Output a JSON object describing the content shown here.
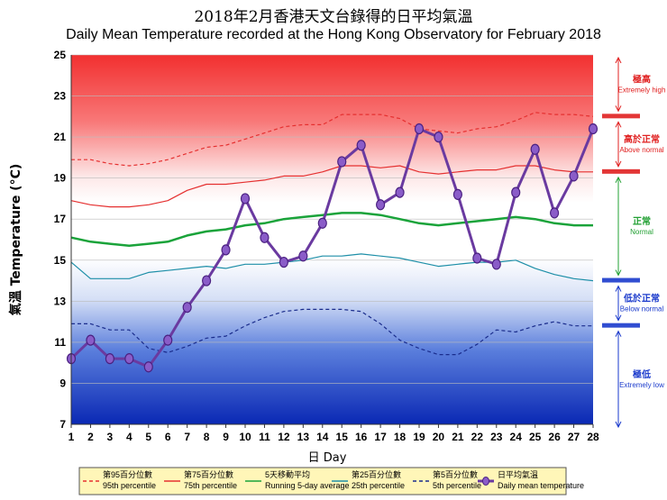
{
  "chart_data": {
    "type": "line",
    "title_zh": "2018年2月香港天文台錄得的日平均氣溫",
    "title": "Daily Mean Temperature recorded at the Hong Kong Observatory for February 2018",
    "xlabel": "日 Day",
    "ylabel": "氣溫  Temperature (°C)",
    "ylim": [
      7,
      25
    ],
    "yticks": [
      "7",
      "9",
      "11",
      "13",
      "15",
      "17",
      "19",
      "21",
      "23",
      "25"
    ],
    "x": [
      1,
      2,
      3,
      4,
      5,
      6,
      7,
      8,
      9,
      10,
      11,
      12,
      13,
      14,
      15,
      16,
      17,
      18,
      19,
      20,
      21,
      22,
      23,
      24,
      25,
      26,
      27,
      28
    ],
    "series": [
      {
        "name": "第95百分位數 95th percentile",
        "color": "#e53030",
        "dash": "4,3",
        "values": [
          19.9,
          19.9,
          19.7,
          19.6,
          19.7,
          19.9,
          20.2,
          20.5,
          20.6,
          20.9,
          21.2,
          21.5,
          21.6,
          21.6,
          22.1,
          22.1,
          22.1,
          21.9,
          21.4,
          21.3,
          21.2,
          21.4,
          21.5,
          21.8,
          22.2,
          22.1,
          22.1,
          22.0
        ]
      },
      {
        "name": "第75百分位數 75th percentile",
        "color": "#e53030",
        "dash": "",
        "values": [
          17.9,
          17.7,
          17.6,
          17.6,
          17.7,
          17.9,
          18.4,
          18.7,
          18.7,
          18.8,
          18.9,
          19.1,
          19.1,
          19.3,
          19.6,
          19.6,
          19.5,
          19.6,
          19.3,
          19.2,
          19.3,
          19.4,
          19.4,
          19.6,
          19.6,
          19.4,
          19.3,
          19.3
        ]
      },
      {
        "name": "5天移動平均 Running 5-day average",
        "color": "#1aa33a",
        "dash": "",
        "values": [
          16.1,
          15.9,
          15.8,
          15.7,
          15.8,
          15.9,
          16.2,
          16.4,
          16.5,
          16.7,
          16.8,
          17.0,
          17.1,
          17.2,
          17.3,
          17.3,
          17.2,
          17.0,
          16.8,
          16.7,
          16.8,
          16.9,
          17.0,
          17.1,
          17.0,
          16.8,
          16.7,
          16.7
        ]
      },
      {
        "name": "第25百分位數 25th percentile",
        "color": "#1e8fa8",
        "dash": "",
        "values": [
          14.9,
          14.1,
          14.1,
          14.1,
          14.4,
          14.5,
          14.6,
          14.7,
          14.6,
          14.8,
          14.8,
          14.9,
          15.0,
          15.2,
          15.2,
          15.3,
          15.2,
          15.1,
          14.9,
          14.7,
          14.8,
          14.9,
          14.9,
          15.0,
          14.6,
          14.3,
          14.1,
          14.0
        ]
      },
      {
        "name": "第5百分位數 5th percentile",
        "color": "#1a2c8c",
        "dash": "4,3",
        "values": [
          11.9,
          11.9,
          11.6,
          11.6,
          10.7,
          10.5,
          10.8,
          11.2,
          11.3,
          11.8,
          12.2,
          12.5,
          12.6,
          12.6,
          12.6,
          12.5,
          11.9,
          11.1,
          10.7,
          10.4,
          10.4,
          10.9,
          11.6,
          11.5,
          11.8,
          12.0,
          11.8,
          11.8
        ]
      },
      {
        "name": "日平均氣溫 Daily mean temperature",
        "color": "#6a3aa0",
        "dash": "",
        "markers": true,
        "values": [
          10.2,
          11.1,
          10.2,
          10.2,
          9.8,
          11.1,
          12.7,
          14.0,
          15.5,
          18.0,
          16.1,
          14.9,
          15.2,
          16.8,
          19.8,
          20.6,
          17.7,
          18.3,
          21.4,
          21.0,
          18.2,
          15.1,
          14.8,
          18.3,
          20.4,
          17.3,
          19.1,
          21.4
        ]
      }
    ],
    "bands": [
      {
        "zh": "極高",
        "en": "Extremely high",
        "color": "#e02020"
      },
      {
        "zh": "高於正常",
        "en": "Above normal",
        "color": "#e02020"
      },
      {
        "zh": "正常",
        "en": "Normal",
        "color": "#22a033"
      },
      {
        "zh": "低於正常",
        "en": "Below normal",
        "color": "#1a3acc"
      },
      {
        "zh": "極低",
        "en": "Extremely low",
        "color": "#1a3acc"
      }
    ],
    "legend": [
      {
        "zh": "第95百分位數",
        "en": "95th percentile"
      },
      {
        "zh": "第75百分位數",
        "en": "75th percentile"
      },
      {
        "zh": "5天移動平均",
        "en": "Running 5-day average"
      },
      {
        "zh": "第25百分位數",
        "en": "25th percentile"
      },
      {
        "zh": "第5百分位數",
        "en": "5th percentile"
      },
      {
        "zh": "日平均氣溫",
        "en": "Daily mean temperature"
      }
    ],
    "colors": {
      "legend_bg": "#fff6b8",
      "grid": "#bbbbbb"
    }
  }
}
